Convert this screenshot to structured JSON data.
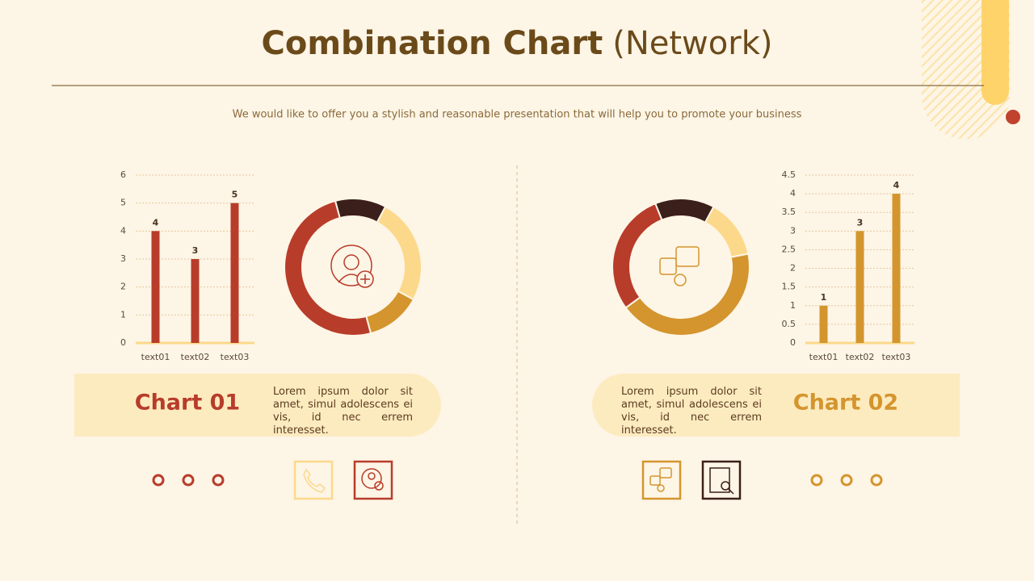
{
  "header": {
    "title": "Combination Chart",
    "title_suffix": "(Network)",
    "subtitle": "We would like to offer you a stylish and reasonable presentation that will help you to promote your business"
  },
  "panels": [
    {
      "label": "Chart 01",
      "text": "Lorem ipsum dolor sit amet, simul adolescens ei vis, id nec errem interesset."
    },
    {
      "label": "Chart 02",
      "text": "Lorem ipsum dolor sit amet, simul adolescens ei vis, id nec errem interesset."
    }
  ],
  "chart_data": [
    {
      "type": "bar",
      "categories": [
        "text01",
        "text02",
        "text03"
      ],
      "values": [
        4,
        3,
        5
      ],
      "color": "#b83c2a",
      "ylim": [
        0,
        6
      ],
      "yticks": [
        0,
        1,
        2,
        3,
        4,
        5,
        6
      ],
      "grid": true,
      "value_labels_shown": true
    },
    {
      "type": "donut",
      "values": [
        12,
        25,
        13,
        50
      ],
      "colors": [
        "#3b1f1a",
        "#fcd98a",
        "#d4952e",
        "#b83c2a"
      ]
    },
    {
      "type": "donut",
      "values": [
        14,
        14,
        43,
        29
      ],
      "colors": [
        "#3b1f1a",
        "#fcd98a",
        "#d4952e",
        "#b83c2a"
      ]
    },
    {
      "type": "bar",
      "categories": [
        "text01",
        "text02",
        "text03"
      ],
      "values": [
        1,
        3,
        4
      ],
      "color": "#d4952e",
      "ylim": [
        0,
        4.5
      ],
      "yticks": [
        0,
        0.5,
        1,
        1.5,
        2,
        2.5,
        3,
        3.5,
        4,
        4.5
      ],
      "grid": true,
      "value_labels_shown": true
    }
  ]
}
